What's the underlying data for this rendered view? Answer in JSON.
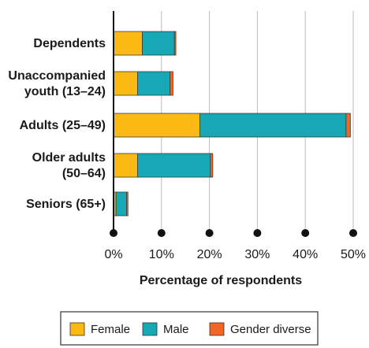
{
  "chart_data": {
    "type": "bar",
    "orientation": "horizontal",
    "stacked": true,
    "categories": [
      [
        "Dependents"
      ],
      [
        "Unaccompanied",
        "youth (13–24)"
      ],
      [
        "Adults (25–49)"
      ],
      [
        "Older adults",
        "(50–64)"
      ],
      [
        "Seniors (65+)"
      ]
    ],
    "series": [
      {
        "name": "Female",
        "color": "#FDB913",
        "values": [
          6,
          5,
          18,
          5,
          0.5
        ]
      },
      {
        "name": "Male",
        "color": "#17A8B5",
        "values": [
          6.7,
          6.8,
          30.5,
          15.2,
          2.2
        ]
      },
      {
        "name": "Gender diverse",
        "color": "#F26522",
        "values": [
          0.3,
          0.6,
          0.9,
          0.5,
          0.3
        ]
      }
    ],
    "xticks": [
      "0%",
      "10%",
      "20%",
      "30%",
      "40%",
      "50%"
    ],
    "xtick_values": [
      0,
      10,
      20,
      30,
      40,
      50
    ],
    "xlim": [
      0,
      50
    ],
    "xlabel": "Percentage of respondents",
    "grid": "vertical",
    "legend": "bottom"
  }
}
